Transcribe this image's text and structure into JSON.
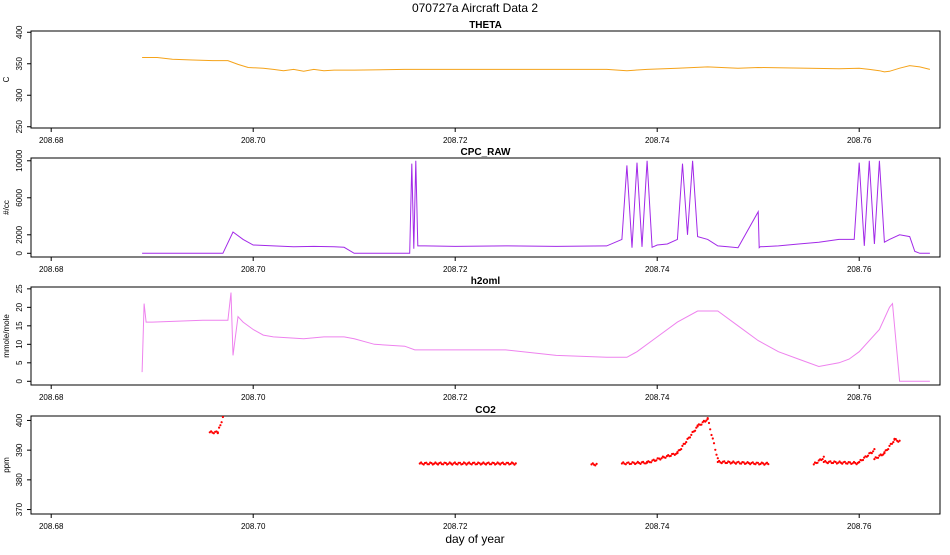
{
  "title": "070727a   Aircraft Data 2",
  "xlabel": "day of year",
  "chart_data": [
    {
      "type": "line",
      "title": "THETA",
      "ylabel": "C",
      "xlim": [
        208.678,
        208.768
      ],
      "ylim": [
        248,
        402
      ],
      "yticks": [
        250,
        300,
        350,
        400
      ],
      "xticks": [
        208.68,
        208.7,
        208.72,
        208.74,
        208.76
      ],
      "xtick_labels": [
        "208.68",
        "208.70",
        "208.72",
        "208.74",
        "208.76"
      ],
      "color": "#f5a31a",
      "series": [
        {
          "x": [
            208.689,
            208.6905,
            208.692,
            208.694,
            208.696,
            208.6975,
            208.6985,
            208.6995,
            208.701,
            208.702,
            208.703,
            208.704,
            208.705,
            208.706,
            208.707,
            208.708,
            208.71,
            208.715,
            208.72,
            208.725,
            208.73,
            208.735,
            208.737,
            208.739,
            208.742,
            208.745,
            208.748,
            208.75,
            208.755,
            208.758,
            208.76,
            208.761,
            208.762,
            208.7625,
            208.763,
            208.764,
            208.765,
            208.766,
            208.767
          ],
          "y": [
            360,
            360,
            357,
            356,
            355,
            355,
            349,
            344,
            343,
            341,
            339,
            341,
            338,
            341,
            339,
            340,
            340,
            341,
            341,
            341,
            341,
            341,
            339,
            341,
            343,
            345,
            343,
            344,
            343,
            342,
            343,
            341,
            339,
            337,
            338,
            343,
            347,
            345,
            341
          ]
        }
      ]
    },
    {
      "type": "line",
      "title": "CPC_RAW",
      "ylabel": "#/cc",
      "xlim": [
        208.678,
        208.768
      ],
      "ylim": [
        -400,
        10300
      ],
      "yticks": [
        0,
        2000,
        6000,
        10000
      ],
      "xticks": [
        208.68,
        208.7,
        208.72,
        208.74,
        208.76
      ],
      "xtick_labels": [
        "208.68",
        "208.70",
        "208.72",
        "208.74",
        "208.76"
      ],
      "color": "#a229e8",
      "series": [
        {
          "x": [
            208.689,
            208.697,
            208.698,
            208.699,
            208.7,
            208.702,
            208.704,
            208.706,
            208.708,
            208.709,
            208.71,
            208.711,
            208.713,
            208.7155,
            208.7157,
            208.7159,
            208.7161,
            208.7163,
            208.717,
            208.72,
            208.725,
            208.73,
            208.735,
            208.7365,
            208.737,
            208.7375,
            208.738,
            208.7385,
            208.739,
            208.7395,
            208.74,
            208.741,
            208.742,
            208.7425,
            208.743,
            208.7435,
            208.744,
            208.745,
            208.746,
            208.747,
            208.748,
            208.75,
            208.7501,
            208.7502,
            208.752,
            208.754,
            208.756,
            208.758,
            208.7595,
            208.76,
            208.7605,
            208.761,
            208.7615,
            208.762,
            208.7625,
            208.763,
            208.764,
            208.765,
            208.7655,
            208.766,
            208.767
          ],
          "y": [
            0,
            0,
            2300,
            1500,
            900,
            800,
            700,
            750,
            700,
            650,
            0,
            0,
            0,
            0,
            9700,
            500,
            10000,
            800,
            800,
            750,
            800,
            750,
            800,
            1500,
            9500,
            600,
            9800,
            700,
            10000,
            650,
            900,
            1000,
            1500,
            9700,
            2000,
            10000,
            1800,
            1500,
            800,
            700,
            600,
            4500,
            600,
            700,
            800,
            1000,
            1200,
            1500,
            1500,
            9800,
            800,
            10000,
            1000,
            10000,
            1200,
            1500,
            2000,
            1800,
            200,
            0,
            0
          ]
        }
      ]
    },
    {
      "type": "line",
      "title": "h2oml",
      "ylabel": "mmole/mole",
      "xlim": [
        208.678,
        208.768
      ],
      "ylim": [
        -1,
        25.5
      ],
      "yticks": [
        0,
        5,
        10,
        15,
        20,
        25
      ],
      "xticks": [
        208.68,
        208.7,
        208.72,
        208.74,
        208.76
      ],
      "xtick_labels": [
        "208.68",
        "208.70",
        "208.72",
        "208.74",
        "208.76"
      ],
      "color": "#ee82ee",
      "series": [
        {
          "x": [
            208.689,
            208.6892,
            208.6894,
            208.69,
            208.695,
            208.6975,
            208.6978,
            208.698,
            208.6985,
            208.699,
            208.7,
            208.701,
            208.702,
            208.705,
            208.707,
            208.709,
            208.71,
            208.712,
            208.715,
            208.716,
            208.717,
            208.72,
            208.725,
            208.73,
            208.735,
            208.737,
            208.738,
            208.74,
            208.742,
            208.744,
            208.746,
            208.748,
            208.75,
            208.752,
            208.754,
            208.756,
            208.758,
            208.759,
            208.76,
            208.762,
            208.763,
            208.7633,
            208.764,
            208.767
          ],
          "y": [
            2.5,
            21,
            16,
            16,
            16.5,
            16.5,
            24,
            7,
            17.5,
            16,
            14,
            12.5,
            12,
            11.5,
            12,
            12,
            11.5,
            10,
            9.5,
            8.5,
            8.5,
            8.5,
            8.5,
            7,
            6.5,
            6.5,
            8,
            12,
            16,
            19,
            19,
            15,
            11,
            8,
            6,
            4,
            5,
            6,
            8,
            14,
            20,
            21,
            0,
            0
          ]
        }
      ]
    },
    {
      "type": "scatter",
      "title": "CO2",
      "ylabel": "ppm",
      "xlim": [
        208.678,
        208.768
      ],
      "ylim": [
        368.5,
        401.5
      ],
      "yticks": [
        370,
        380,
        390,
        400
      ],
      "ytick_labels": [
        "370",
        "380",
        "390",
        "400"
      ],
      "xticks": [
        208.68,
        208.7,
        208.72,
        208.74,
        208.76
      ],
      "xtick_labels": [
        "208.68",
        "208.70",
        "208.72",
        "208.74",
        "208.76"
      ],
      "color": "#ff0000",
      "segments": [
        {
          "x": [
            208.6957,
            208.6965
          ],
          "y": [
            396,
            396
          ]
        },
        {
          "x": [
            208.6965,
            208.697
          ],
          "y": [
            396,
            401
          ]
        },
        {
          "x": [
            208.7165,
            208.726
          ],
          "y": [
            385.5,
            385.5
          ]
        },
        {
          "x": [
            208.7335,
            208.734
          ],
          "y": [
            385.2,
            385.2
          ]
        },
        {
          "x": [
            208.7365,
            208.739
          ],
          "y": [
            385.5,
            385.8
          ]
        },
        {
          "x": [
            208.739,
            208.742
          ],
          "y": [
            385.8,
            389
          ]
        },
        {
          "x": [
            208.742,
            208.744
          ],
          "y": [
            389,
            398
          ]
        },
        {
          "x": [
            208.744,
            208.745
          ],
          "y": [
            398,
            400.5
          ]
        },
        {
          "x": [
            208.745,
            208.746
          ],
          "y": [
            400.5,
            387
          ]
        },
        {
          "x": [
            208.746,
            208.751
          ],
          "y": [
            386,
            385.4
          ]
        },
        {
          "x": [
            208.7555,
            208.7565
          ],
          "y": [
            385.2,
            387.5
          ]
        },
        {
          "x": [
            208.7565,
            208.76
          ],
          "y": [
            386,
            385.6
          ]
        },
        {
          "x": [
            208.76,
            208.7615
          ],
          "y": [
            386,
            390
          ]
        },
        {
          "x": [
            208.7615,
            208.7625
          ],
          "y": [
            387,
            389
          ]
        },
        {
          "x": [
            208.7625,
            208.7635
          ],
          "y": [
            389,
            393.5
          ]
        },
        {
          "x": [
            208.7635,
            208.764
          ],
          "y": [
            393.5,
            393
          ]
        }
      ]
    }
  ]
}
